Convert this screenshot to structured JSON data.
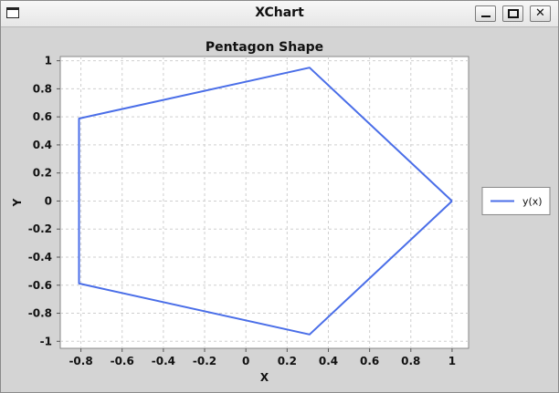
{
  "window": {
    "title": "XChart",
    "min_glyph": "minimize-icon",
    "max_glyph": "maximize-icon",
    "close_glyph": "✕"
  },
  "chart_data": {
    "type": "line",
    "title": "Pentagon Shape",
    "xlabel": "X",
    "ylabel": "Y",
    "xlim": [
      -0.9,
      1.08
    ],
    "ylim": [
      -1.05,
      1.03
    ],
    "xticks": [
      -0.8,
      -0.6,
      -0.4,
      -0.2,
      0,
      0.2,
      0.4,
      0.6,
      0.8,
      1
    ],
    "yticks": [
      -1,
      -0.8,
      -0.6,
      -0.4,
      -0.2,
      0,
      0.2,
      0.4,
      0.6,
      0.8,
      1
    ],
    "grid": true,
    "legend_position": "right",
    "series": [
      {
        "name": "y(x)",
        "color": "#4a6ee8",
        "x": [
          1.0,
          0.309,
          -0.809,
          -0.809,
          0.309,
          1.0
        ],
        "y": [
          0.0,
          0.951,
          0.588,
          -0.588,
          -0.951,
          0.0
        ]
      }
    ]
  }
}
